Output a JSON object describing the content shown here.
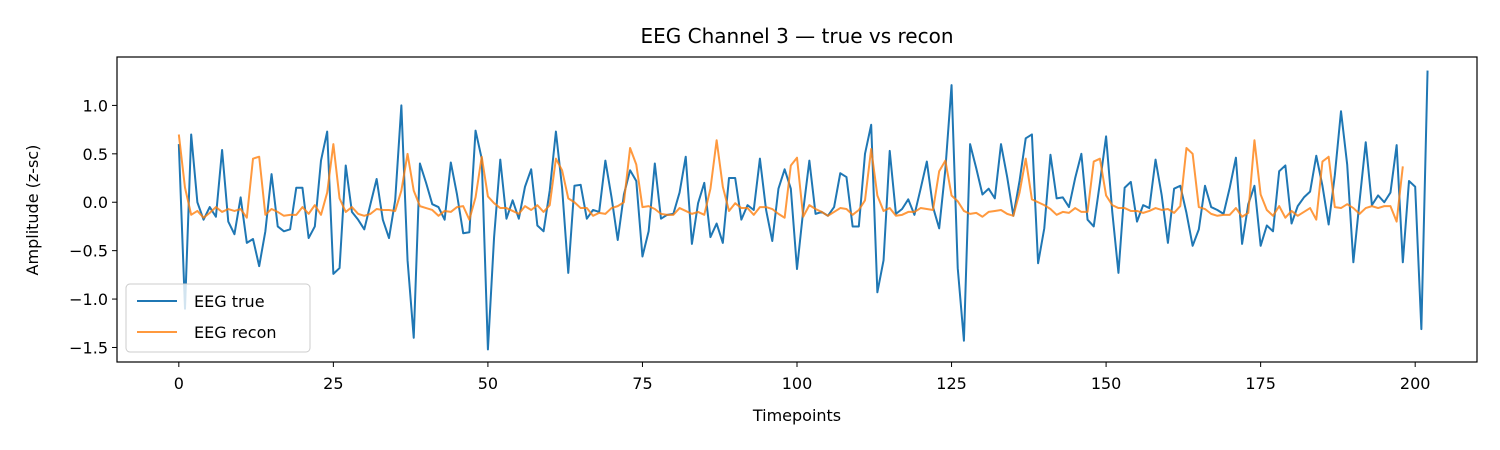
{
  "chart_data": {
    "type": "line",
    "title": "EEG Channel 3 — true vs recon",
    "xlabel": "Timepoints",
    "ylabel": "Amplitude (z-sc)",
    "xlim": [
      -10,
      210
    ],
    "ylim": [
      -1.65,
      1.5
    ],
    "xticks": [
      0,
      25,
      50,
      75,
      100,
      125,
      150,
      175,
      200
    ],
    "xtick_labels": [
      "0",
      "25",
      "50",
      "75",
      "100",
      "125",
      "150",
      "175",
      "200"
    ],
    "yticks": [
      1.0,
      0.5,
      0.0,
      -0.5,
      -1.0,
      -1.5
    ],
    "ytick_labels": [
      "1.0",
      "0.5",
      "0.0",
      "−0.5",
      "−1.0",
      "−1.5"
    ],
    "grid": false,
    "legend_position": "lower-left",
    "series": [
      {
        "name": "EEG true",
        "color": "#1f77b4",
        "values": [
          0.6,
          -1.1,
          0.7,
          0.0,
          -0.18,
          -0.05,
          -0.15,
          0.54,
          -0.2,
          -0.33,
          0.05,
          -0.42,
          -0.38,
          -0.66,
          -0.3,
          0.29,
          -0.25,
          -0.3,
          -0.28,
          0.15,
          0.15,
          -0.37,
          -0.25,
          0.43,
          0.73,
          -0.74,
          -0.68,
          0.38,
          -0.1,
          -0.18,
          -0.28,
          -0.02,
          0.24,
          -0.18,
          -0.37,
          0.02,
          1.0,
          -0.6,
          -1.4,
          0.4,
          0.2,
          -0.02,
          -0.05,
          -0.18,
          0.41,
          0.08,
          -0.32,
          -0.31,
          0.74,
          0.45,
          -1.52,
          -0.36,
          0.44,
          -0.17,
          0.02,
          -0.17,
          0.16,
          0.34,
          -0.24,
          -0.3,
          0.12,
          0.73,
          0.15,
          -0.73,
          0.17,
          0.18,
          -0.17,
          -0.08,
          -0.1,
          0.43,
          0.05,
          -0.39,
          0.08,
          0.33,
          0.22,
          -0.56,
          -0.3,
          0.4,
          -0.17,
          -0.13,
          -0.12,
          0.1,
          0.47,
          -0.43,
          -0.01,
          0.2,
          -0.36,
          -0.22,
          -0.42,
          0.25,
          0.25,
          -0.18,
          -0.03,
          -0.08,
          0.45,
          -0.08,
          -0.4,
          0.14,
          0.34,
          0.14,
          -0.69,
          -0.09,
          0.43,
          -0.12,
          -0.1,
          -0.14,
          -0.05,
          0.3,
          0.26,
          -0.25,
          -0.25,
          0.5,
          0.8,
          -0.93,
          -0.6,
          0.53,
          -0.12,
          -0.07,
          0.03,
          -0.13,
          0.14,
          0.42,
          -0.05,
          -0.27,
          0.34,
          1.21,
          -0.68,
          -1.43,
          0.6,
          0.35,
          0.08,
          0.14,
          0.04,
          0.6,
          0.26,
          -0.14,
          0.22,
          0.66,
          0.7,
          -0.63,
          -0.27,
          0.49,
          0.04,
          0.05,
          -0.05,
          0.25,
          0.5,
          -0.18,
          -0.25,
          0.2,
          0.68,
          -0.1,
          -0.73,
          0.15,
          0.21,
          -0.2,
          -0.03,
          -0.06,
          0.44,
          0.07,
          -0.42,
          0.14,
          0.17,
          -0.11,
          -0.45,
          -0.28,
          0.17,
          -0.05,
          -0.08,
          -0.12,
          0.15,
          0.46,
          -0.43,
          -0.02,
          0.17,
          -0.45,
          -0.24,
          -0.3,
          0.32,
          0.38,
          -0.22,
          -0.04,
          0.05,
          0.11,
          0.48,
          0.17,
          -0.23,
          0.28,
          0.94,
          0.39,
          -0.62,
          0.01,
          0.62,
          -0.03,
          0.07,
          0.0,
          0.1,
          0.59,
          -0.62,
          0.22,
          0.16,
          -1.31,
          1.36
        ]
      },
      {
        "name": "EEG recon",
        "color": "#ff7f0e",
        "values": [
          0.7,
          0.15,
          -0.13,
          -0.09,
          -0.16,
          -0.11,
          -0.05,
          -0.1,
          -0.07,
          -0.09,
          -0.07,
          -0.16,
          0.45,
          0.47,
          -0.13,
          -0.07,
          -0.1,
          -0.14,
          -0.13,
          -0.13,
          -0.05,
          -0.12,
          -0.03,
          -0.13,
          0.1,
          0.6,
          0.04,
          -0.1,
          -0.05,
          -0.12,
          -0.14,
          -0.12,
          -0.07,
          -0.08,
          -0.08,
          -0.09,
          0.12,
          0.5,
          0.12,
          -0.04,
          -0.06,
          -0.08,
          -0.14,
          -0.09,
          -0.1,
          -0.05,
          -0.04,
          -0.18,
          0.05,
          0.47,
          0.06,
          -0.01,
          -0.06,
          -0.06,
          -0.09,
          -0.12,
          -0.04,
          -0.08,
          -0.03,
          -0.1,
          -0.03,
          0.45,
          0.33,
          0.04,
          0.0,
          -0.06,
          -0.06,
          -0.14,
          -0.11,
          -0.12,
          -0.06,
          -0.04,
          0.0,
          0.56,
          0.39,
          -0.05,
          -0.04,
          -0.07,
          -0.12,
          -0.13,
          -0.13,
          -0.06,
          -0.09,
          -0.12,
          -0.1,
          -0.13,
          0.14,
          0.64,
          0.16,
          -0.09,
          -0.01,
          -0.06,
          -0.06,
          -0.13,
          -0.05,
          -0.05,
          -0.07,
          -0.12,
          -0.16,
          0.38,
          0.46,
          -0.15,
          -0.03,
          -0.07,
          -0.1,
          -0.14,
          -0.1,
          -0.06,
          -0.07,
          -0.13,
          -0.08,
          0.02,
          0.55,
          0.07,
          -0.09,
          -0.06,
          -0.14,
          -0.13,
          -0.1,
          -0.1,
          -0.06,
          -0.07,
          -0.08,
          0.32,
          0.43,
          0.07,
          0.01,
          -0.09,
          -0.12,
          -0.11,
          -0.15,
          -0.1,
          -0.09,
          -0.08,
          -0.12,
          -0.14,
          0.1,
          0.45,
          0.03,
          0.0,
          -0.03,
          -0.07,
          -0.13,
          -0.1,
          -0.11,
          -0.06,
          -0.1,
          -0.1,
          0.42,
          0.45,
          0.07,
          -0.03,
          -0.06,
          -0.06,
          -0.09,
          -0.09,
          -0.11,
          -0.09,
          -0.06,
          -0.08,
          -0.07,
          -0.11,
          -0.04,
          0.56,
          0.5,
          -0.05,
          -0.07,
          -0.12,
          -0.14,
          -0.13,
          -0.13,
          -0.06,
          -0.15,
          -0.11,
          0.64,
          0.08,
          -0.08,
          -0.14,
          -0.04,
          -0.16,
          -0.09,
          -0.14,
          -0.1,
          -0.06,
          -0.18,
          0.42,
          0.47,
          -0.05,
          -0.06,
          -0.02,
          -0.06,
          -0.12,
          -0.06,
          -0.04,
          -0.06,
          -0.04,
          -0.04,
          -0.2,
          0.37
        ]
      }
    ]
  }
}
